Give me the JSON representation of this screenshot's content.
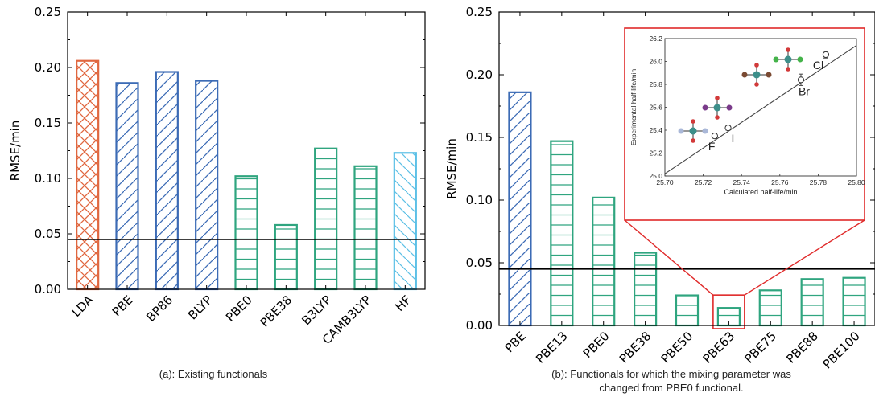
{
  "colors": {
    "LDA": "#e0673f",
    "GGA": "#3c6bb5",
    "hybrid": "#2fa57f",
    "HF": "#5cc0e6",
    "highlight": "#e02a2a",
    "reference_line": "#000000"
  },
  "chart_data": [
    {
      "type": "bar",
      "panel": "a",
      "caption": "(a): Existing functionals",
      "categories": [
        "LDA",
        "PBE",
        "BP86",
        "BLYP",
        "PBE0",
        "PBE38",
        "B3LYP",
        "CAMB3LYP",
        "HF"
      ],
      "values": [
        0.206,
        0.186,
        0.196,
        0.188,
        0.102,
        0.058,
        0.127,
        0.111,
        0.123
      ],
      "bar_styles": [
        "LDA",
        "GGA",
        "GGA",
        "GGA",
        "hybrid",
        "hybrid",
        "hybrid",
        "hybrid",
        "HF"
      ],
      "ylabel": "RMSE/min",
      "ylim": [
        0,
        0.25
      ],
      "yticks": [
        0.0,
        0.05,
        0.1,
        0.15,
        0.2,
        0.25
      ],
      "ytick_labels": [
        "0.00",
        "0.05",
        "0.10",
        "0.15",
        "0.20",
        "0.25"
      ],
      "reference_line": 0.045
    },
    {
      "type": "bar",
      "panel": "b",
      "caption_lines": [
        "(b): Functionals for which the mixing parameter was",
        "changed from PBE0 functional."
      ],
      "categories": [
        "PBE",
        "PBE13",
        "PBE0",
        "PBE38",
        "PBE50",
        "PBE63",
        "PBE75",
        "PBE88",
        "PBE100"
      ],
      "values": [
        0.186,
        0.147,
        0.102,
        0.058,
        0.024,
        0.014,
        0.028,
        0.037,
        0.038
      ],
      "bar_styles": [
        "GGA",
        "hybrid",
        "hybrid",
        "hybrid",
        "hybrid",
        "hybrid",
        "hybrid",
        "hybrid",
        "hybrid"
      ],
      "ylabel": "RMSE/min",
      "ylim": [
        0,
        0.25
      ],
      "yticks": [
        0.0,
        0.05,
        0.1,
        0.15,
        0.2,
        0.25
      ],
      "ytick_labels": [
        "0.00",
        "0.05",
        "0.10",
        "0.15",
        "0.20",
        "0.25"
      ],
      "reference_line": 0.045,
      "highlighted_category": "PBE63"
    },
    {
      "type": "scatter",
      "panel": "b-inset",
      "xlabel": "Calculated half-life/min",
      "ylabel": "Experimental half-life/min",
      "xlim": [
        25.7,
        25.8
      ],
      "ylim": [
        25.0,
        26.2
      ],
      "xticks": [
        25.7,
        25.72,
        25.74,
        25.76,
        25.78,
        25.8
      ],
      "xtick_labels": [
        "25.70",
        "25.72",
        "25.74",
        "25.76",
        "25.78",
        "25.80"
      ],
      "yticks": [
        25.0,
        25.2,
        25.4,
        25.6,
        25.8,
        26.0,
        26.2
      ],
      "ytick_labels": [
        "25.0",
        "25.2",
        "25.4",
        "25.6",
        "25.8",
        "26.0",
        "26.2"
      ],
      "points": [
        {
          "label": "F",
          "x": 25.726,
          "y": 25.35,
          "err": 0.02
        },
        {
          "label": "I",
          "x": 25.733,
          "y": 25.42,
          "err": 0.02
        },
        {
          "label": "Br",
          "x": 25.771,
          "y": 25.84,
          "err": 0.05
        },
        {
          "label": "Cl",
          "x": 25.784,
          "y": 26.06,
          "err": 0.03
        }
      ],
      "fit_line": {
        "x": [
          25.7,
          25.8
        ],
        "y": [
          25.02,
          26.14
        ]
      }
    }
  ]
}
